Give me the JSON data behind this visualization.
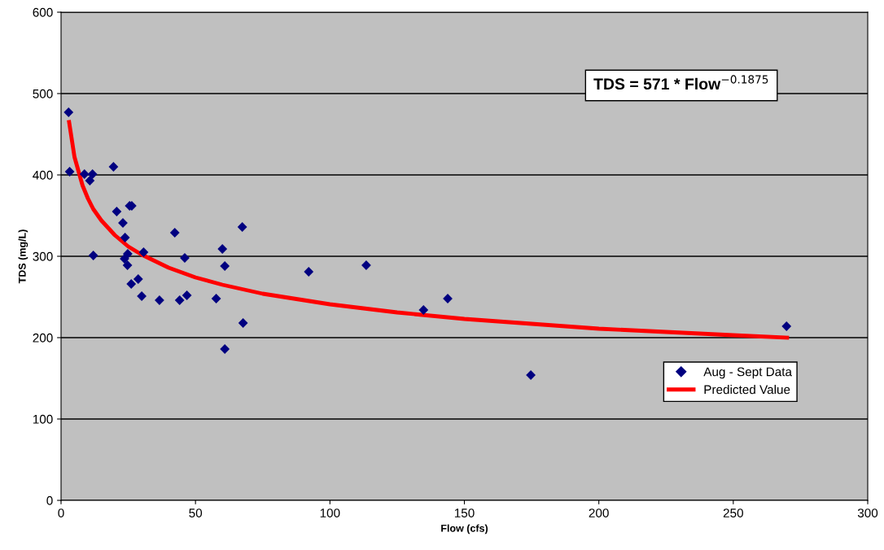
{
  "chart_data": {
    "type": "scatter",
    "xlabel": "Flow (cfs)",
    "ylabel": "TDS (mg/L)",
    "xlim": [
      0,
      300
    ],
    "xticks": [
      0,
      50,
      100,
      150,
      200,
      250,
      300
    ],
    "ylim": [
      0,
      600
    ],
    "yticks": [
      0,
      100,
      200,
      300,
      400,
      500,
      600
    ],
    "grid": "y",
    "legend": "bottom right",
    "annotations": [
      "TDS = 571 * Flow$^{−0.1875}$"
    ],
    "series": [
      {
        "name": "Aug - Sept Data",
        "marker": "diamond",
        "color": "#000080",
        "x": [
          2.8,
          3.2,
          8.7,
          11.7,
          10.7,
          19.5,
          25.5,
          26.3,
          20.7,
          23,
          23.8,
          12,
          24.8,
          23.6,
          24.7,
          30.7,
          28.7,
          26.1,
          30,
          36.6,
          42.3,
          46,
          44.1,
          46.8,
          57.7,
          60,
          60.9,
          67.4,
          67.7,
          60.9,
          92.1,
          113.5,
          134.8,
          143.8,
          174.7,
          269.8
        ],
        "values": [
          477,
          404,
          401,
          401,
          393,
          410,
          362,
          362,
          355,
          341,
          323,
          301,
          303,
          297,
          289,
          305,
          272,
          266,
          251,
          246,
          329,
          298,
          246,
          252,
          248,
          309,
          288,
          336,
          218,
          186,
          281,
          289,
          234,
          248,
          154,
          214
        ]
      },
      {
        "name": "Predicted Value",
        "type": "line",
        "marker": "none",
        "line_style": "solid",
        "color": "#ff0000",
        "x": [
          3,
          5,
          8,
          10,
          12,
          15,
          20,
          25,
          30,
          40,
          50,
          60,
          75,
          100,
          125,
          150,
          175,
          200,
          225,
          250,
          270
        ],
        "values": [
          465,
          422,
          387,
          371,
          358,
          344,
          326,
          312,
          302,
          286,
          274,
          265,
          254,
          241,
          231,
          223,
          217,
          211,
          207,
          203,
          200
        ]
      }
    ]
  }
}
